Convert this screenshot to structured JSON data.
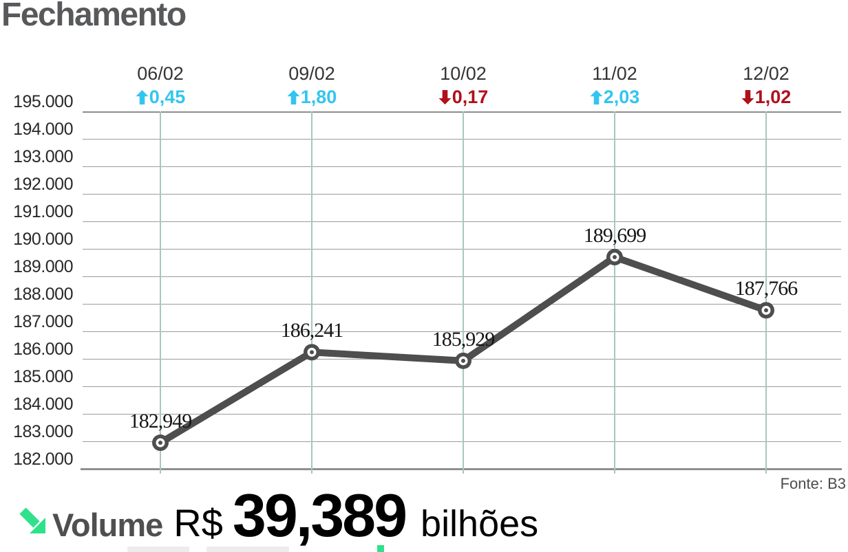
{
  "title": "Fechamento",
  "source": "Fonte: B3",
  "colors": {
    "up": "#33c5f0",
    "down": "#b0101a",
    "accent_green": "#30e18c",
    "line": "#4e4e4e",
    "title_gray": "#58595b"
  },
  "volume": {
    "arrow_icon": "south-east-arrow",
    "label": "Volume",
    "currency": "R$",
    "value": "39,389",
    "unit": "bilhões"
  },
  "chart_data": {
    "type": "line",
    "title": "Fechamento",
    "x_tick_labels": [
      "06/02",
      "09/02",
      "10/02",
      "11/02",
      "12/02"
    ],
    "values": [
      182949,
      186241,
      185929,
      189699,
      187766
    ],
    "point_labels": [
      "182,949",
      "186,241",
      "185,929",
      "189,699",
      "187,766"
    ],
    "changes": [
      {
        "text": "0,45",
        "direction": "up"
      },
      {
        "text": "1,80",
        "direction": "up"
      },
      {
        "text": "0,17",
        "direction": "down"
      },
      {
        "text": "2,03",
        "direction": "up"
      },
      {
        "text": "1,02",
        "direction": "down"
      }
    ],
    "y_ticks": [
      "195.000",
      "194.000",
      "193.000",
      "192.000",
      "191.000",
      "190.000",
      "189.000",
      "188.000",
      "187.000",
      "186.000",
      "185.000",
      "184.000",
      "183.000",
      "182.000"
    ],
    "ylim": [
      182000,
      195000
    ],
    "grid": true,
    "legend": false
  }
}
